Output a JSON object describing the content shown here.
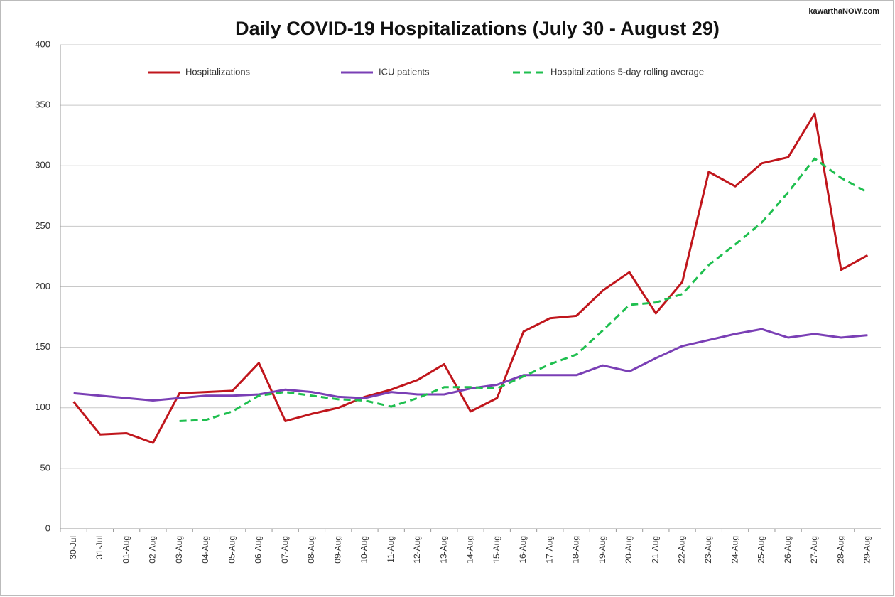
{
  "chart_data": {
    "type": "line",
    "title": "Daily COVID-19 Hospitalizations (July 30 - August 29)",
    "watermark": "kawarthaNOW.com",
    "categories": [
      "30-Jul",
      "31-Jul",
      "01-Aug",
      "02-Aug",
      "03-Aug",
      "04-Aug",
      "05-Aug",
      "06-Aug",
      "07-Aug",
      "08-Aug",
      "09-Aug",
      "10-Aug",
      "11-Aug",
      "12-Aug",
      "13-Aug",
      "14-Aug",
      "15-Aug",
      "16-Aug",
      "17-Aug",
      "18-Aug",
      "19-Aug",
      "20-Aug",
      "21-Aug",
      "22-Aug",
      "23-Aug",
      "24-Aug",
      "25-Aug",
      "26-Aug",
      "27-Aug",
      "28-Aug",
      "29-Aug"
    ],
    "series": [
      {
        "name": "Hospitalizations",
        "color": "#c0161c",
        "dash": false,
        "values": [
          105,
          78,
          79,
          71,
          112,
          113,
          114,
          137,
          89,
          95,
          100,
          109,
          115,
          123,
          136,
          97,
          108,
          163,
          174,
          176,
          197,
          212,
          178,
          204,
          295,
          283,
          302,
          307,
          343,
          214,
          226
        ]
      },
      {
        "name": "ICU patients",
        "color": "#7a3fb5",
        "dash": false,
        "values": [
          112,
          110,
          108,
          106,
          108,
          110,
          110,
          111,
          115,
          113,
          109,
          108,
          113,
          111,
          111,
          116,
          119,
          127,
          127,
          127,
          135,
          130,
          141,
          151,
          156,
          161,
          165,
          158,
          161,
          158,
          160
        ]
      },
      {
        "name": "Hospitalizations 5-day rolling average",
        "color": "#1fbf4f",
        "dash": true,
        "values": [
          null,
          null,
          null,
          null,
          89,
          90,
          97,
          110,
          113,
          110,
          107,
          106,
          101,
          108,
          117,
          117,
          116,
          126,
          136,
          144,
          164,
          185,
          187,
          194,
          218,
          235,
          253,
          278,
          306,
          290,
          278
        ]
      }
    ],
    "ylim": [
      0,
      400
    ],
    "yticks": [
      0,
      50,
      100,
      150,
      200,
      250,
      300,
      350,
      400
    ],
    "grid": true,
    "legend": "top"
  }
}
